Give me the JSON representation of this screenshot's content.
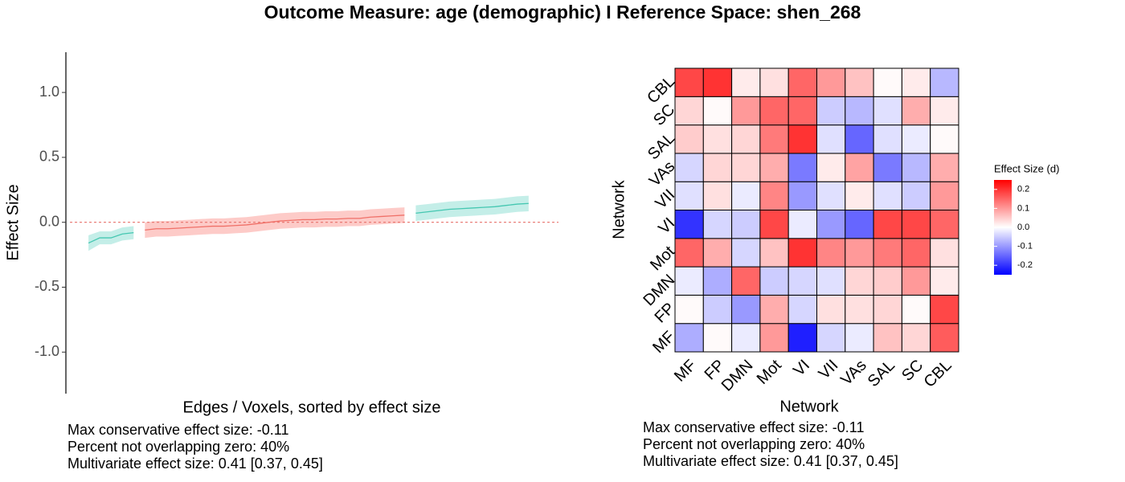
{
  "title": "Outcome Measure: age (demographic)   I  Reference Space: shen_268",
  "chart_data": [
    {
      "type": "line",
      "xlabel": "Edges / Voxels, sorted by effect size",
      "ylabel": "Effect Size",
      "xlim": [
        -1,
        43
      ],
      "ylim": [
        -1.32,
        1.31
      ],
      "yticks": [
        {
          "value": -1,
          "label": "-1.0"
        },
        -0.5,
        {
          "value": 0,
          "label": "0.0"
        },
        0.5,
        {
          "value": 1,
          "label": "1.0"
        }
      ],
      "reference_line": {
        "value": 0,
        "color": "#e8716b"
      },
      "series": [
        {
          "color": "#45c7b1",
          "band_color": "#c4eee8",
          "x": [
            1,
            2,
            3,
            4,
            5
          ],
          "values": [
            -0.16,
            -0.12,
            -0.12,
            -0.09,
            -0.08
          ],
          "lower": [
            -0.22,
            -0.17,
            -0.17,
            -0.14,
            -0.13
          ],
          "upper": [
            -0.1,
            -0.07,
            -0.07,
            -0.04,
            -0.03
          ]
        },
        {
          "color": "#f07068",
          "band_color": "#fdcbc8",
          "x": [
            6,
            7,
            8,
            9,
            10,
            11,
            12,
            13,
            14,
            15,
            16,
            17,
            18,
            19,
            20,
            21,
            22,
            23,
            24,
            25,
            26,
            27,
            28,
            29
          ],
          "values": [
            -0.06,
            -0.05,
            -0.05,
            -0.045,
            -0.04,
            -0.035,
            -0.03,
            -0.03,
            -0.025,
            -0.02,
            -0.01,
            0.0,
            0.01,
            0.015,
            0.02,
            0.02,
            0.025,
            0.025,
            0.03,
            0.03,
            0.04,
            0.045,
            0.05,
            0.055
          ],
          "lower": [
            -0.12,
            -0.11,
            -0.11,
            -0.105,
            -0.1,
            -0.095,
            -0.09,
            -0.09,
            -0.085,
            -0.08,
            -0.07,
            -0.06,
            -0.05,
            -0.045,
            -0.04,
            -0.04,
            -0.035,
            -0.035,
            -0.03,
            -0.03,
            -0.02,
            -0.015,
            -0.01,
            -0.005
          ],
          "upper": [
            0.0,
            0.01,
            0.01,
            0.015,
            0.02,
            0.025,
            0.03,
            0.03,
            0.035,
            0.04,
            0.05,
            0.06,
            0.07,
            0.075,
            0.08,
            0.08,
            0.085,
            0.085,
            0.09,
            0.09,
            0.1,
            0.105,
            0.11,
            0.115
          ]
        },
        {
          "color": "#45c7b1",
          "band_color": "#c4eee8",
          "x": [
            30,
            31,
            32,
            33,
            34,
            35,
            36,
            37,
            38,
            39,
            40
          ],
          "values": [
            0.07,
            0.08,
            0.09,
            0.1,
            0.105,
            0.11,
            0.115,
            0.12,
            0.13,
            0.14,
            0.145
          ],
          "lower": [
            0.01,
            0.02,
            0.03,
            0.04,
            0.045,
            0.05,
            0.055,
            0.06,
            0.07,
            0.08,
            0.085
          ],
          "upper": [
            0.13,
            0.14,
            0.15,
            0.16,
            0.165,
            0.17,
            0.175,
            0.18,
            0.19,
            0.2,
            0.205
          ]
        }
      ],
      "notes": [
        "Max conservative effect size: -0.11",
        "Percent not overlapping zero: 40%",
        "Multivariate effect size: 0.41 [0.37, 0.45]"
      ]
    },
    {
      "type": "heatmap",
      "xlabel": "Network",
      "ylabel": "Network",
      "x_categories": [
        "MF",
        "FP",
        "DMN",
        "Mot",
        "VI",
        "VII",
        "VAs",
        "SAL",
        "SC",
        "CBL"
      ],
      "y_categories": [
        "MF",
        "FP",
        "DMN",
        "Mot",
        "VI",
        "VII",
        "VAs",
        "SAL",
        "SC",
        "CBL"
      ],
      "z": [
        [
          -0.08,
          0.005,
          -0.02,
          0.1,
          -0.22,
          -0.04,
          -0.02,
          0.06,
          0.04,
          0.16
        ],
        [
          0.005,
          -0.05,
          -0.1,
          0.08,
          -0.04,
          0.03,
          0.03,
          0.04,
          0.005,
          0.18
        ],
        [
          -0.02,
          -0.08,
          0.15,
          -0.05,
          -0.04,
          -0.03,
          0.04,
          0.05,
          0.1,
          0.02
        ],
        [
          0.15,
          0.08,
          -0.04,
          0.06,
          0.2,
          0.12,
          0.1,
          0.13,
          0.15,
          0.03
        ],
        [
          -0.2,
          -0.04,
          -0.05,
          0.18,
          -0.02,
          -0.1,
          -0.15,
          0.18,
          0.18,
          0.15
        ],
        [
          -0.03,
          0.03,
          -0.02,
          0.12,
          -0.1,
          -0.03,
          0.02,
          -0.03,
          -0.05,
          0.1
        ],
        [
          -0.04,
          0.04,
          0.04,
          0.08,
          -0.13,
          0.02,
          0.09,
          -0.13,
          -0.07,
          0.08
        ],
        [
          0.05,
          0.03,
          0.04,
          0.13,
          0.2,
          -0.03,
          -0.15,
          -0.03,
          -0.02,
          0.005
        ],
        [
          0.04,
          0.005,
          0.1,
          0.15,
          0.15,
          -0.05,
          -0.07,
          -0.03,
          0.08,
          0.02
        ],
        [
          0.18,
          0.2,
          0.02,
          0.03,
          0.15,
          0.1,
          0.06,
          0.005,
          0.02,
          -0.07
        ]
      ],
      "zlim": [
        -0.25,
        0.25
      ],
      "colors": {
        "low": "#0000ff",
        "mid": "#ffffff",
        "high": "#ff0000"
      },
      "legend_title": "Effect Size (d)",
      "legend_ticks": [
        -0.2,
        -0.1,
        {
          "value": 0,
          "label": "0.0"
        },
        0.1,
        0.2
      ],
      "notes": [
        "Max conservative effect size: -0.11",
        "Percent not overlapping zero: 40%",
        "Multivariate effect size: 0.41 [0.37, 0.45]"
      ]
    }
  ]
}
